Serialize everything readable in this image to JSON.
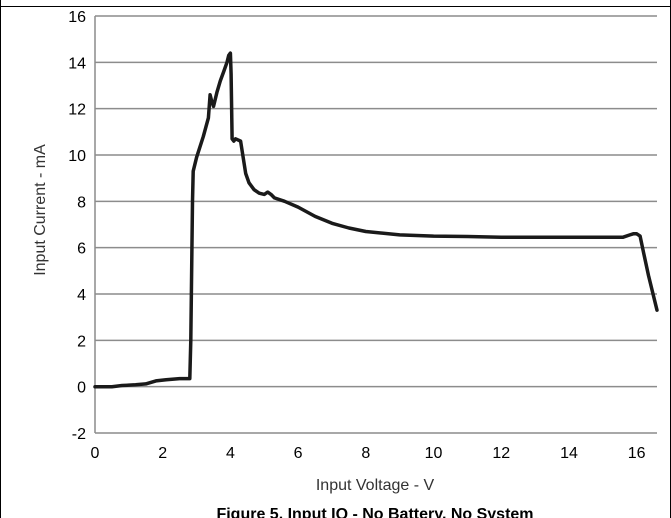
{
  "chart_data": {
    "type": "line",
    "title": "",
    "caption": "Figure 5. Input IQ - No Battery, No System",
    "xlabel": "Input Voltage - V",
    "ylabel": "Input Current - mA",
    "xlim": [
      0,
      16.6
    ],
    "ylim": [
      -2,
      16
    ],
    "x_ticks": [
      0,
      2,
      4,
      6,
      8,
      10,
      12,
      14,
      16
    ],
    "y_ticks": [
      -2,
      0,
      2,
      4,
      6,
      8,
      10,
      12,
      14,
      16
    ],
    "x_tick_labels": [
      "0",
      "2",
      "4",
      "6",
      "8",
      "10",
      "12",
      "14",
      "16"
    ],
    "y_tick_labels": [
      "-2",
      "0",
      "2",
      "4",
      "6",
      "8",
      "10",
      "12",
      "14",
      "16"
    ],
    "grid": "horizontal",
    "legend": "none",
    "series": [
      {
        "color": "#1a1a1a",
        "x": [
          0,
          0.5,
          0.8,
          1.2,
          1.5,
          1.8,
          2.1,
          2.5,
          2.8,
          2.83,
          2.88,
          2.9,
          3.0,
          3.2,
          3.35,
          3.4,
          3.45,
          3.5,
          3.6,
          3.7,
          3.8,
          3.9,
          3.95,
          4.0,
          4.02,
          4.05,
          4.1,
          4.15,
          4.3,
          4.45,
          4.55,
          4.7,
          4.85,
          5.0,
          5.1,
          5.2,
          5.3,
          5.6,
          6.0,
          6.5,
          7.0,
          7.5,
          8.0,
          9.0,
          10.0,
          11.0,
          12.0,
          13.0,
          14.0,
          15.0,
          15.6,
          15.8,
          15.9,
          16.0,
          16.1,
          16.2,
          16.35,
          16.6
        ],
        "y": [
          0,
          0,
          0.05,
          0.08,
          0.12,
          0.25,
          0.3,
          0.35,
          0.35,
          2,
          8,
          9.3,
          9.9,
          10.8,
          11.6,
          12.6,
          12.3,
          12.1,
          12.7,
          13.2,
          13.6,
          14.0,
          14.3,
          14.4,
          13.5,
          10.7,
          10.6,
          10.7,
          10.6,
          9.2,
          8.8,
          8.5,
          8.35,
          8.3,
          8.4,
          8.3,
          8.15,
          8.0,
          7.75,
          7.35,
          7.05,
          6.85,
          6.7,
          6.55,
          6.5,
          6.48,
          6.45,
          6.45,
          6.45,
          6.45,
          6.45,
          6.55,
          6.6,
          6.6,
          6.5,
          5.8,
          4.8,
          3.3
        ]
      }
    ]
  }
}
